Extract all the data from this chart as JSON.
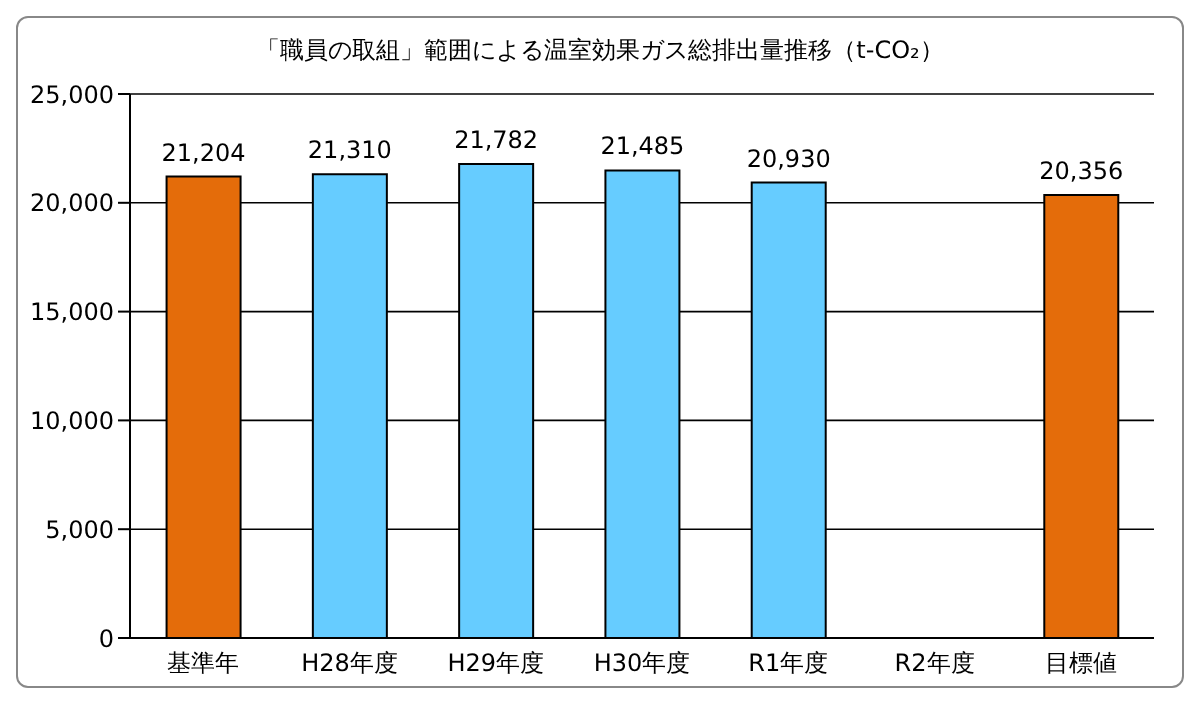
{
  "chart_data": {
    "type": "bar",
    "title": "「職員の取組」範囲による温室効果ガス総排出量推移（t-CO₂）",
    "categories": [
      "基準年",
      "H28年度",
      "H29年度",
      "H30年度",
      "R1年度",
      "R2年度",
      "目標値"
    ],
    "values": [
      21204,
      21310,
      21782,
      21485,
      20930,
      null,
      20356
    ],
    "colors": [
      "#e46c0a",
      "#66ccff",
      "#66ccff",
      "#66ccff",
      "#66ccff",
      "#66ccff",
      "#e46c0a"
    ],
    "value_labels": [
      "21,204",
      "21,310",
      "21,782",
      "21,485",
      "20,930",
      null,
      "20,356"
    ],
    "ylim": [
      0,
      25000
    ],
    "yticks": [
      {
        "value": 0,
        "label": "0"
      },
      {
        "value": 5000,
        "label": "5,000"
      },
      {
        "value": 10000,
        "label": "10,000"
      },
      {
        "value": 15000,
        "label": "15,000"
      },
      {
        "value": 20000,
        "label": "20,000"
      },
      {
        "value": 25000,
        "label": "25,000"
      }
    ],
    "grid": "y"
  }
}
